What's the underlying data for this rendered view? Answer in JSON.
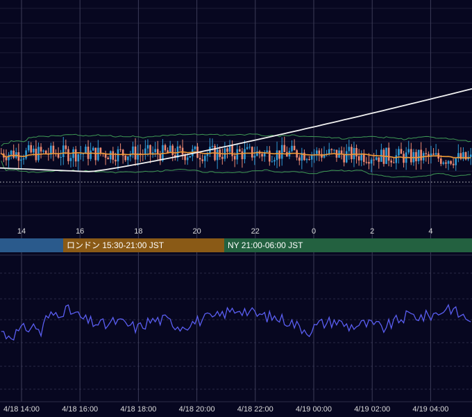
{
  "colors": {
    "background": "#070720",
    "grid_vertical": "#3c3c58",
    "grid_horizontal": "#1c1c36",
    "candle_up": "#2f9bd6",
    "candle_down": "#ef8a73",
    "bollinger": "#3f9a55",
    "ma_short": "#f09a35",
    "ma_long": "#f2f2f2",
    "rsi_line": "#5a5ef2",
    "session_asia": "#2a5a8c",
    "session_london": "#8a5a16",
    "session_ny": "#236140",
    "label_text": "#dcdcdc"
  },
  "top_axis": {
    "labels": [
      "14",
      "16",
      "18",
      "20",
      "22",
      "0",
      "2",
      "4"
    ]
  },
  "sessions": [
    {
      "name": "asia",
      "label": ""
    },
    {
      "name": "london",
      "label": "ロンドン 15:30-21:00 JST"
    },
    {
      "name": "ny",
      "label": "NY 21:00-06:00 JST"
    }
  ],
  "bottom_axis": {
    "labels": [
      "4/18 14:00",
      "4/18 16:00",
      "4/18 18:00",
      "4/18 20:00",
      "4/18 22:00",
      "4/19 00:00",
      "4/19 02:00",
      "4/19 04:00"
    ]
  },
  "chart_data": [
    {
      "type": "candlestick",
      "x_ticks": [
        "14",
        "16",
        "18",
        "20",
        "22",
        "0",
        "2",
        "4"
      ],
      "price_path": [
        [
          0,
          0.3
        ],
        [
          5,
          0.27
        ],
        [
          11,
          0.22
        ],
        [
          14,
          0.16
        ],
        [
          16,
          0.08
        ],
        [
          16.5,
          0.22
        ],
        [
          17,
          0.36
        ],
        [
          17.6,
          0.45
        ],
        [
          18.2,
          0.5
        ],
        [
          19,
          0.43
        ],
        [
          20,
          0.48
        ],
        [
          21,
          0.53
        ],
        [
          22,
          0.68
        ],
        [
          22.5,
          0.76
        ],
        [
          23.5,
          0.68
        ],
        [
          0.5,
          0.57
        ],
        [
          1,
          0.66
        ],
        [
          2,
          0.7
        ],
        [
          3,
          0.76
        ],
        [
          4,
          0.9
        ],
        [
          4.5,
          0.86
        ]
      ],
      "series": [
        {
          "role": "candles",
          "count": 190
        },
        {
          "role": "bollinger_bands"
        },
        {
          "role": "moving_average_short"
        },
        {
          "role": "moving_average_long"
        }
      ]
    },
    {
      "type": "line",
      "x_ticks": [
        "4/18 14:00",
        "4/18 16:00",
        "4/18 18:00",
        "4/18 20:00",
        "4/18 22:00",
        "4/19 00:00",
        "4/19 02:00",
        "4/19 04:00"
      ],
      "series": [
        {
          "role": "oscillator",
          "count": 190
        }
      ],
      "oscillator_path": [
        [
          0,
          0.3
        ],
        [
          2,
          0.22
        ],
        [
          5,
          0.24
        ],
        [
          10,
          0.35
        ],
        [
          14,
          0.38
        ],
        [
          16,
          0.25
        ],
        [
          18,
          0.52
        ],
        [
          22,
          0.62
        ],
        [
          26,
          0.68
        ],
        [
          30,
          0.6
        ],
        [
          34,
          0.48
        ],
        [
          38,
          0.44
        ],
        [
          42,
          0.4
        ],
        [
          46,
          0.47
        ],
        [
          50,
          0.42
        ],
        [
          55,
          0.35
        ],
        [
          60,
          0.48
        ],
        [
          66,
          0.5
        ],
        [
          72,
          0.38
        ],
        [
          78,
          0.46
        ],
        [
          82,
          0.52
        ],
        [
          86,
          0.53
        ],
        [
          90,
          0.62
        ],
        [
          96,
          0.7
        ],
        [
          102,
          0.6
        ],
        [
          108,
          0.55
        ],
        [
          112,
          0.52
        ],
        [
          116,
          0.47
        ],
        [
          120,
          0.37
        ],
        [
          124,
          0.3
        ],
        [
          128,
          0.42
        ],
        [
          134,
          0.48
        ],
        [
          140,
          0.38
        ],
        [
          146,
          0.42
        ],
        [
          150,
          0.4
        ],
        [
          154,
          0.35
        ],
        [
          158,
          0.45
        ],
        [
          164,
          0.58
        ],
        [
          170,
          0.55
        ],
        [
          176,
          0.62
        ],
        [
          180,
          0.74
        ],
        [
          184,
          0.6
        ],
        [
          188,
          0.52
        ],
        [
          190,
          0.52
        ]
      ]
    }
  ]
}
